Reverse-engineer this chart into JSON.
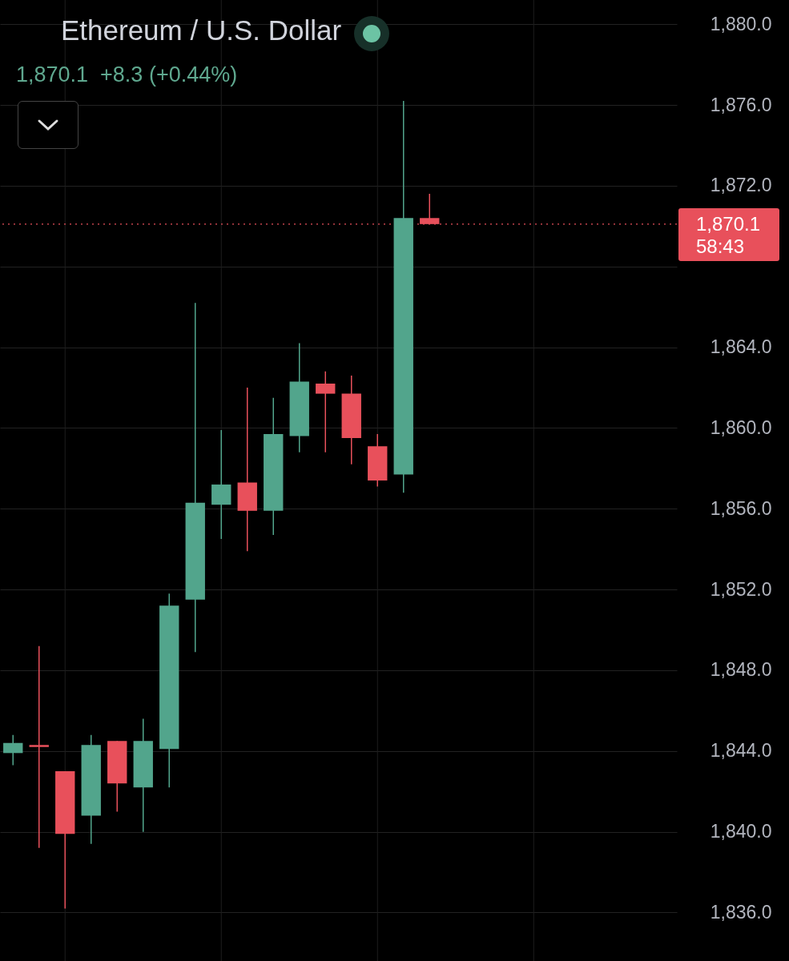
{
  "chart_data": {
    "type": "candlestick",
    "title": "Ethereum / U.S. Dollar",
    "subtitle": "1,870.1  +8.3 (+0.44%)",
    "categories": [
      null,
      null,
      null,
      null,
      null,
      null,
      null,
      null,
      null,
      null,
      null,
      null,
      null,
      null,
      null,
      null,
      null,
      null,
      null,
      null,
      null,
      null,
      null,
      null,
      null,
      null
    ],
    "ohlc": [
      [
        1843.9,
        1844.8,
        1843.3,
        1844.4
      ],
      [
        1844.3,
        1849.2,
        1839.2,
        1844.2
      ],
      [
        1843.0,
        1843.0,
        1836.2,
        1839.9
      ],
      [
        1840.8,
        1844.8,
        1839.4,
        1844.3
      ],
      [
        1844.5,
        1844.5,
        1841.0,
        1842.4
      ],
      [
        1842.2,
        1845.6,
        1840.0,
        1844.5
      ],
      [
        1844.1,
        1851.8,
        1842.2,
        1851.2
      ],
      [
        1851.5,
        1866.2,
        1848.9,
        1856.3
      ],
      [
        1856.2,
        1859.9,
        1854.5,
        1857.2
      ],
      [
        1857.3,
        1862.0,
        1853.9,
        1855.9
      ],
      [
        1855.9,
        1861.5,
        1854.7,
        1859.7
      ],
      [
        1859.6,
        1864.2,
        1858.8,
        1862.3
      ],
      [
        1862.2,
        1862.8,
        1858.8,
        1861.7
      ],
      [
        1861.7,
        1862.6,
        1858.2,
        1859.5
      ],
      [
        1859.1,
        1859.7,
        1857.1,
        1857.4
      ],
      [
        1857.7,
        1876.2,
        1856.8,
        1870.4
      ],
      [
        1870.4,
        1871.6,
        1870.1,
        1870.1
      ],
      null,
      null,
      null,
      null,
      null,
      null,
      null,
      null,
      null
    ],
    "colors": [
      "#52a58c",
      "#e8505b",
      "#e8505b",
      "#52a58c",
      "#e8505b",
      "#52a58c",
      "#52a58c",
      "#52a58c",
      "#52a58c",
      "#e8505b",
      "#52a58c",
      "#52a58c",
      "#e8505b",
      "#e8505b",
      "#e8505b",
      "#52a58c",
      "#e8505b",
      null,
      null,
      null,
      null,
      null,
      null,
      null,
      null,
      null
    ],
    "ylim": [
      1833.6,
      1881.2
    ],
    "yticks": [
      {
        "value": 1836,
        "label": "1,836.0"
      },
      {
        "value": 1840,
        "label": "1,840.0"
      },
      {
        "value": 1844,
        "label": "1,844.0"
      },
      {
        "value": 1848,
        "label": "1,848.0"
      },
      {
        "value": 1852,
        "label": "1,852.0"
      },
      {
        "value": 1856,
        "label": "1,856.0"
      },
      {
        "value": 1860,
        "label": "1,860.0"
      },
      {
        "value": 1864,
        "label": "1,864.0"
      },
      {
        "value": 1868,
        "label": null
      },
      {
        "value": 1872,
        "label": "1,872.0"
      },
      {
        "value": 1876,
        "label": "1,876.0"
      },
      {
        "value": 1880,
        "label": "1,880.0"
      }
    ],
    "grid": true,
    "tick_labels": "y",
    "ref_lines": [
      {
        "axis": "y",
        "value": 1870.1,
        "label": "1,870.1",
        "color": "#e8505b",
        "line_style": "dotted"
      }
    ],
    "annotations": [
      "58:43"
    ]
  }
}
